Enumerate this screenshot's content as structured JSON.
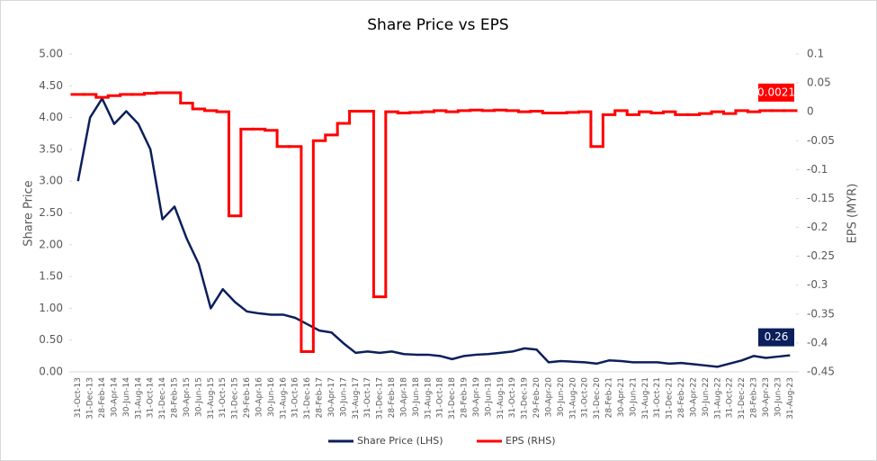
{
  "chart_data": {
    "type": "line",
    "title": "Share Price vs EPS",
    "y_label": "Share Price",
    "y2_label": "EPS (MYR)",
    "categories": [
      "31-Oct-13",
      "31-Dec-13",
      "28-Feb-14",
      "30-Apr-14",
      "30-Jun-14",
      "31-Aug-14",
      "31-Oct-14",
      "31-Dec-14",
      "28-Feb-15",
      "30-Apr-15",
      "30-Jun-15",
      "31-Aug-15",
      "31-Oct-15",
      "31-Dec-15",
      "29-Feb-16",
      "30-Apr-16",
      "30-Jun-16",
      "31-Aug-16",
      "31-Oct-16",
      "31-Dec-16",
      "28-Feb-17",
      "30-Apr-17",
      "30-Jun-17",
      "31-Aug-17",
      "31-Oct-17",
      "31-Dec-17",
      "28-Feb-18",
      "30-Apr-18",
      "30-Jun-18",
      "31-Aug-18",
      "31-Oct-18",
      "31-Dec-18",
      "28-Feb-19",
      "30-Apr-19",
      "30-Jun-19",
      "31-Aug-19",
      "31-Oct-19",
      "31-Dec-19",
      "29-Feb-20",
      "30-Apr-20",
      "30-Jun-20",
      "31-Aug-20",
      "31-Oct-20",
      "31-Dec-20",
      "28-Feb-21",
      "30-Apr-21",
      "30-Jun-21",
      "31-Aug-21",
      "31-Oct-21",
      "31-Dec-21",
      "28-Feb-22",
      "30-Apr-22",
      "30-Jun-22",
      "31-Aug-22",
      "31-Oct-22",
      "31-Dec-22",
      "28-Feb-23",
      "30-Apr-23",
      "30-Jun-23",
      "31-Aug-23"
    ],
    "series": [
      {
        "name": "Share Price (LHS)",
        "color": "#0b1f5c",
        "axis": "y",
        "values": [
          3.0,
          4.0,
          4.3,
          3.9,
          4.1,
          3.9,
          3.5,
          2.4,
          2.6,
          2.1,
          1.7,
          1.0,
          1.3,
          1.1,
          0.95,
          0.92,
          0.9,
          0.9,
          0.85,
          0.75,
          0.65,
          0.62,
          0.45,
          0.3,
          0.32,
          0.3,
          0.32,
          0.28,
          0.27,
          0.27,
          0.25,
          0.2,
          0.25,
          0.27,
          0.28,
          0.3,
          0.32,
          0.37,
          0.35,
          0.15,
          0.17,
          0.16,
          0.15,
          0.13,
          0.18,
          0.17,
          0.15,
          0.15,
          0.15,
          0.13,
          0.14,
          0.12,
          0.1,
          0.08,
          0.13,
          0.18,
          0.25,
          0.22,
          0.24,
          0.26
        ]
      },
      {
        "name": "EPS (RHS)",
        "color": "#ff0000",
        "axis": "y2",
        "step": true,
        "values": [
          0.03,
          0.03,
          0.025,
          0.028,
          0.03,
          0.03,
          0.032,
          0.033,
          0.033,
          0.015,
          0.005,
          0.002,
          0,
          -0.18,
          -0.03,
          -0.03,
          -0.032,
          -0.06,
          -0.06,
          -0.415,
          -0.05,
          -0.04,
          -0.02,
          0.001,
          0.001,
          -0.32,
          0,
          -0.002,
          -0.001,
          0,
          0.002,
          0,
          0.002,
          0.003,
          0.002,
          0.003,
          0.002,
          0,
          0.001,
          -0.002,
          -0.002,
          -0.001,
          0,
          -0.06,
          -0.005,
          0.002,
          -0.005,
          0,
          -0.002,
          0,
          -0.005,
          -0.005,
          -0.003,
          0,
          -0.003,
          0.002,
          0,
          0.0021,
          0.0021,
          0.0021
        ]
      }
    ],
    "ylim": [
      0,
      5
    ],
    "yticks": [
      {
        "value": 0,
        "label": "0.00"
      },
      {
        "value": 0.5,
        "label": "0.50"
      },
      {
        "value": 1,
        "label": "1.00"
      },
      {
        "value": 1.5,
        "label": "1.50"
      },
      {
        "value": 2,
        "label": "2.00"
      },
      {
        "value": 2.5,
        "label": "2.50"
      },
      {
        "value": 3,
        "label": "3.00"
      },
      {
        "value": 3.5,
        "label": "3.50"
      },
      {
        "value": 4,
        "label": "4.00"
      },
      {
        "value": 4.5,
        "label": "4.50"
      },
      {
        "value": 5,
        "label": "5.00"
      }
    ],
    "y2lim": [
      -0.45,
      0.1
    ],
    "y2ticks": [
      -0.45,
      -0.4,
      -0.35,
      -0.3,
      -0.25,
      -0.2,
      -0.15,
      -0.1,
      -0.05,
      0,
      0.05,
      0.1
    ],
    "grid": false,
    "legend": "bottom"
  }
}
